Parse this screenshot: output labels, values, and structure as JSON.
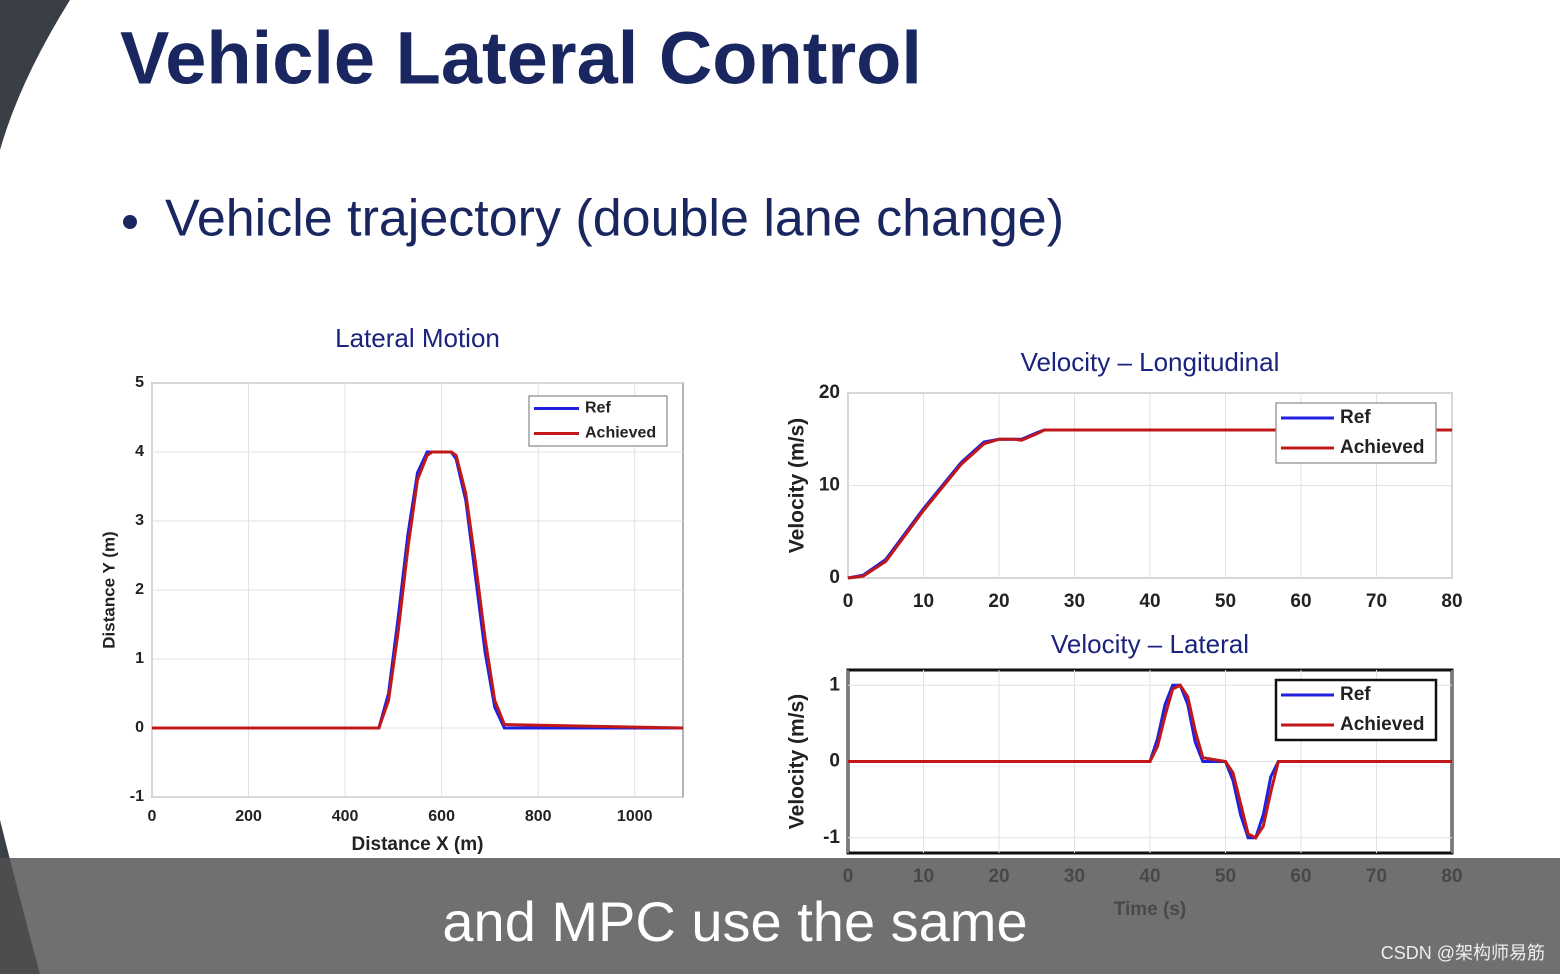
{
  "slide_title": "Vehicle Lateral Control",
  "bullet": "Vehicle trajectory (double lane change)",
  "caption": "and MPC use the same",
  "watermark": "CSDN @架构师易筋",
  "chart_data": [
    {
      "type": "line",
      "title": "Lateral Motion",
      "xlabel": "Distance X (m)",
      "ylabel": "Distance Y (m)",
      "x": [
        0,
        470,
        490,
        510,
        530,
        550,
        570,
        580,
        620,
        630,
        650,
        670,
        690,
        710,
        730,
        1100
      ],
      "series": [
        {
          "name": "Ref",
          "color": "#2020e0",
          "values": [
            0,
            0,
            0.5,
            1.6,
            2.8,
            3.7,
            4,
            4,
            4,
            3.9,
            3.3,
            2.2,
            1.1,
            0.3,
            0,
            0
          ]
        },
        {
          "name": "Achieved",
          "color": "#c01818",
          "values": [
            0,
            0,
            0.4,
            1.4,
            2.6,
            3.6,
            3.95,
            4,
            4,
            3.95,
            3.4,
            2.4,
            1.3,
            0.4,
            0.05,
            0
          ]
        }
      ],
      "xlim": [
        0,
        1100
      ],
      "xticks": [
        0,
        200,
        400,
        600,
        800,
        1000
      ],
      "ylim": [
        -1,
        5
      ],
      "yticks": [
        -1,
        0,
        1,
        2,
        3,
        4,
        5
      ],
      "grid": true,
      "legend": "upper right"
    },
    {
      "type": "line",
      "title": "Velocity – Longitudinal",
      "ylabel": "Velocity (m/s)",
      "x": [
        0,
        2,
        5,
        10,
        15,
        18,
        20,
        22,
        23,
        25,
        26,
        80
      ],
      "series": [
        {
          "name": "Ref",
          "color": "#2020e0",
          "values": [
            0,
            0.3,
            2,
            7.5,
            12.5,
            14.7,
            15,
            15,
            15,
            15.7,
            16,
            16
          ]
        },
        {
          "name": "Achieved",
          "color": "#c01818",
          "values": [
            0,
            0.2,
            1.8,
            7.3,
            12.3,
            14.5,
            15,
            15,
            14.9,
            15.6,
            16,
            16
          ]
        }
      ],
      "xlim": [
        0,
        80
      ],
      "xticks": [
        0,
        10,
        20,
        30,
        40,
        50,
        60,
        70,
        80
      ],
      "ylim": [
        0,
        20
      ],
      "yticks": [
        0,
        10,
        20
      ],
      "grid": true,
      "legend": "upper right"
    },
    {
      "type": "line",
      "title": "Velocity – Lateral",
      "xlabel": "Time (s)",
      "ylabel": "Velocity (m/s)",
      "x": [
        0,
        40,
        41,
        42,
        43,
        44,
        45,
        46,
        47,
        50,
        51,
        52,
        53,
        54,
        55,
        56,
        57,
        80
      ],
      "series": [
        {
          "name": "Ref",
          "color": "#2020e0",
          "values": [
            0,
            0,
            0.3,
            0.75,
            1,
            1,
            0.75,
            0.25,
            0,
            0,
            -0.25,
            -0.7,
            -1,
            -1,
            -0.7,
            -0.2,
            0,
            0
          ]
        },
        {
          "name": "Achieved",
          "color": "#c01818",
          "values": [
            0,
            0,
            0.2,
            0.6,
            0.95,
            1,
            0.85,
            0.4,
            0.05,
            0,
            -0.15,
            -0.55,
            -0.95,
            -1,
            -0.85,
            -0.4,
            0,
            0
          ]
        }
      ],
      "xlim": [
        0,
        80
      ],
      "xticks": [
        0,
        10,
        20,
        30,
        40,
        50,
        60,
        70,
        80
      ],
      "ylim": [
        -1.2,
        1.2
      ],
      "yticks": [
        -1,
        0,
        1
      ],
      "grid": true,
      "legend": "upper right"
    }
  ]
}
